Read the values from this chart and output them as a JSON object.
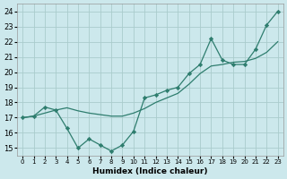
{
  "xlabel": "Humidex (Indice chaleur)",
  "x": [
    0,
    1,
    2,
    3,
    4,
    5,
    6,
    7,
    8,
    9,
    10,
    11,
    12,
    13,
    14,
    15,
    16,
    17,
    18,
    19,
    20,
    21,
    22,
    23
  ],
  "smooth_y": [
    17.0,
    17.1,
    17.3,
    17.5,
    17.65,
    17.45,
    17.3,
    17.2,
    17.1,
    17.1,
    17.3,
    17.6,
    18.0,
    18.3,
    18.6,
    19.2,
    19.9,
    20.4,
    20.5,
    20.65,
    20.7,
    20.9,
    21.3,
    22.0
  ],
  "zigzag_y": [
    17.0,
    17.1,
    17.7,
    17.5,
    16.3,
    15.0,
    15.6,
    15.2,
    14.8,
    15.2,
    16.1,
    18.3,
    18.5,
    18.8,
    19.0,
    19.9,
    20.5,
    22.2,
    20.8,
    20.5,
    20.5,
    21.5,
    23.1,
    24.0
  ],
  "color": "#2e7d6e",
  "bg_color": "#cce8ec",
  "grid_color": "#aacccc",
  "ylim": [
    14.5,
    24.5
  ],
  "xlim": [
    -0.5,
    23.5
  ],
  "yticks": [
    15,
    16,
    17,
    18,
    19,
    20,
    21,
    22,
    23,
    24
  ],
  "xticks": [
    0,
    1,
    2,
    3,
    4,
    5,
    6,
    7,
    8,
    9,
    10,
    11,
    12,
    13,
    14,
    15,
    16,
    17,
    18,
    19,
    20,
    21,
    22,
    23
  ],
  "xticklabels": [
    "0",
    "1",
    "2",
    "3",
    "4",
    "5",
    "6",
    "7",
    "8",
    "9",
    "10",
    "11",
    "12",
    "13",
    "14",
    "15",
    "16",
    "17",
    "18",
    "19",
    "20",
    "21",
    "22",
    "23"
  ]
}
